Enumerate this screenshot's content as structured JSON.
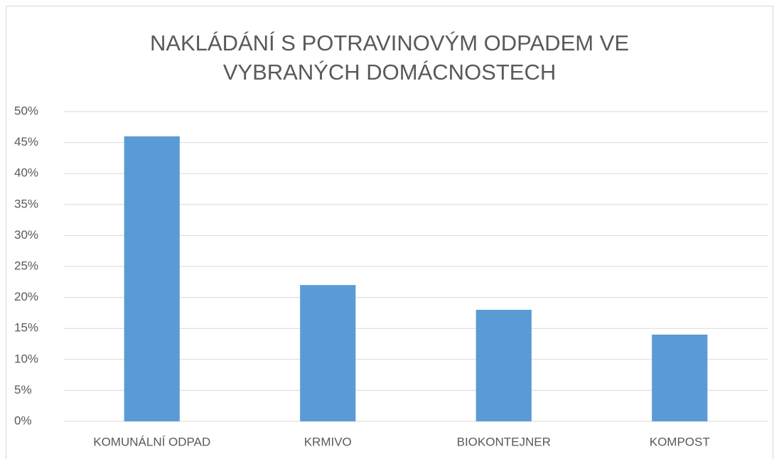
{
  "chart_data": {
    "type": "bar",
    "title": [
      "NAKLÁDÁNÍ S POTRAVINOVÝM ODPADEM VE",
      "VYBRANÝCH DOMÁCNOSTECH"
    ],
    "categories": [
      "KOMUNÁLNÍ ODPAD",
      "KRMIVO",
      "BIOKONTEJNER",
      "KOMPOST"
    ],
    "values": [
      46,
      22,
      18,
      14
    ],
    "color": "#5b9bd5",
    "ylim": [
      0,
      50
    ],
    "yticks": [
      {
        "value": 0,
        "label": "0%"
      },
      {
        "value": 5,
        "label": "5%"
      },
      {
        "value": 10,
        "label": "10%"
      },
      {
        "value": 15,
        "label": "15%"
      },
      {
        "value": 20,
        "label": "20%"
      },
      {
        "value": 25,
        "label": "25%"
      },
      {
        "value": 30,
        "label": "30%"
      },
      {
        "value": 35,
        "label": "35%"
      },
      {
        "value": 40,
        "label": "40%"
      },
      {
        "value": 45,
        "label": "45%"
      },
      {
        "value": 50,
        "label": "50%"
      }
    ],
    "grid": true
  }
}
